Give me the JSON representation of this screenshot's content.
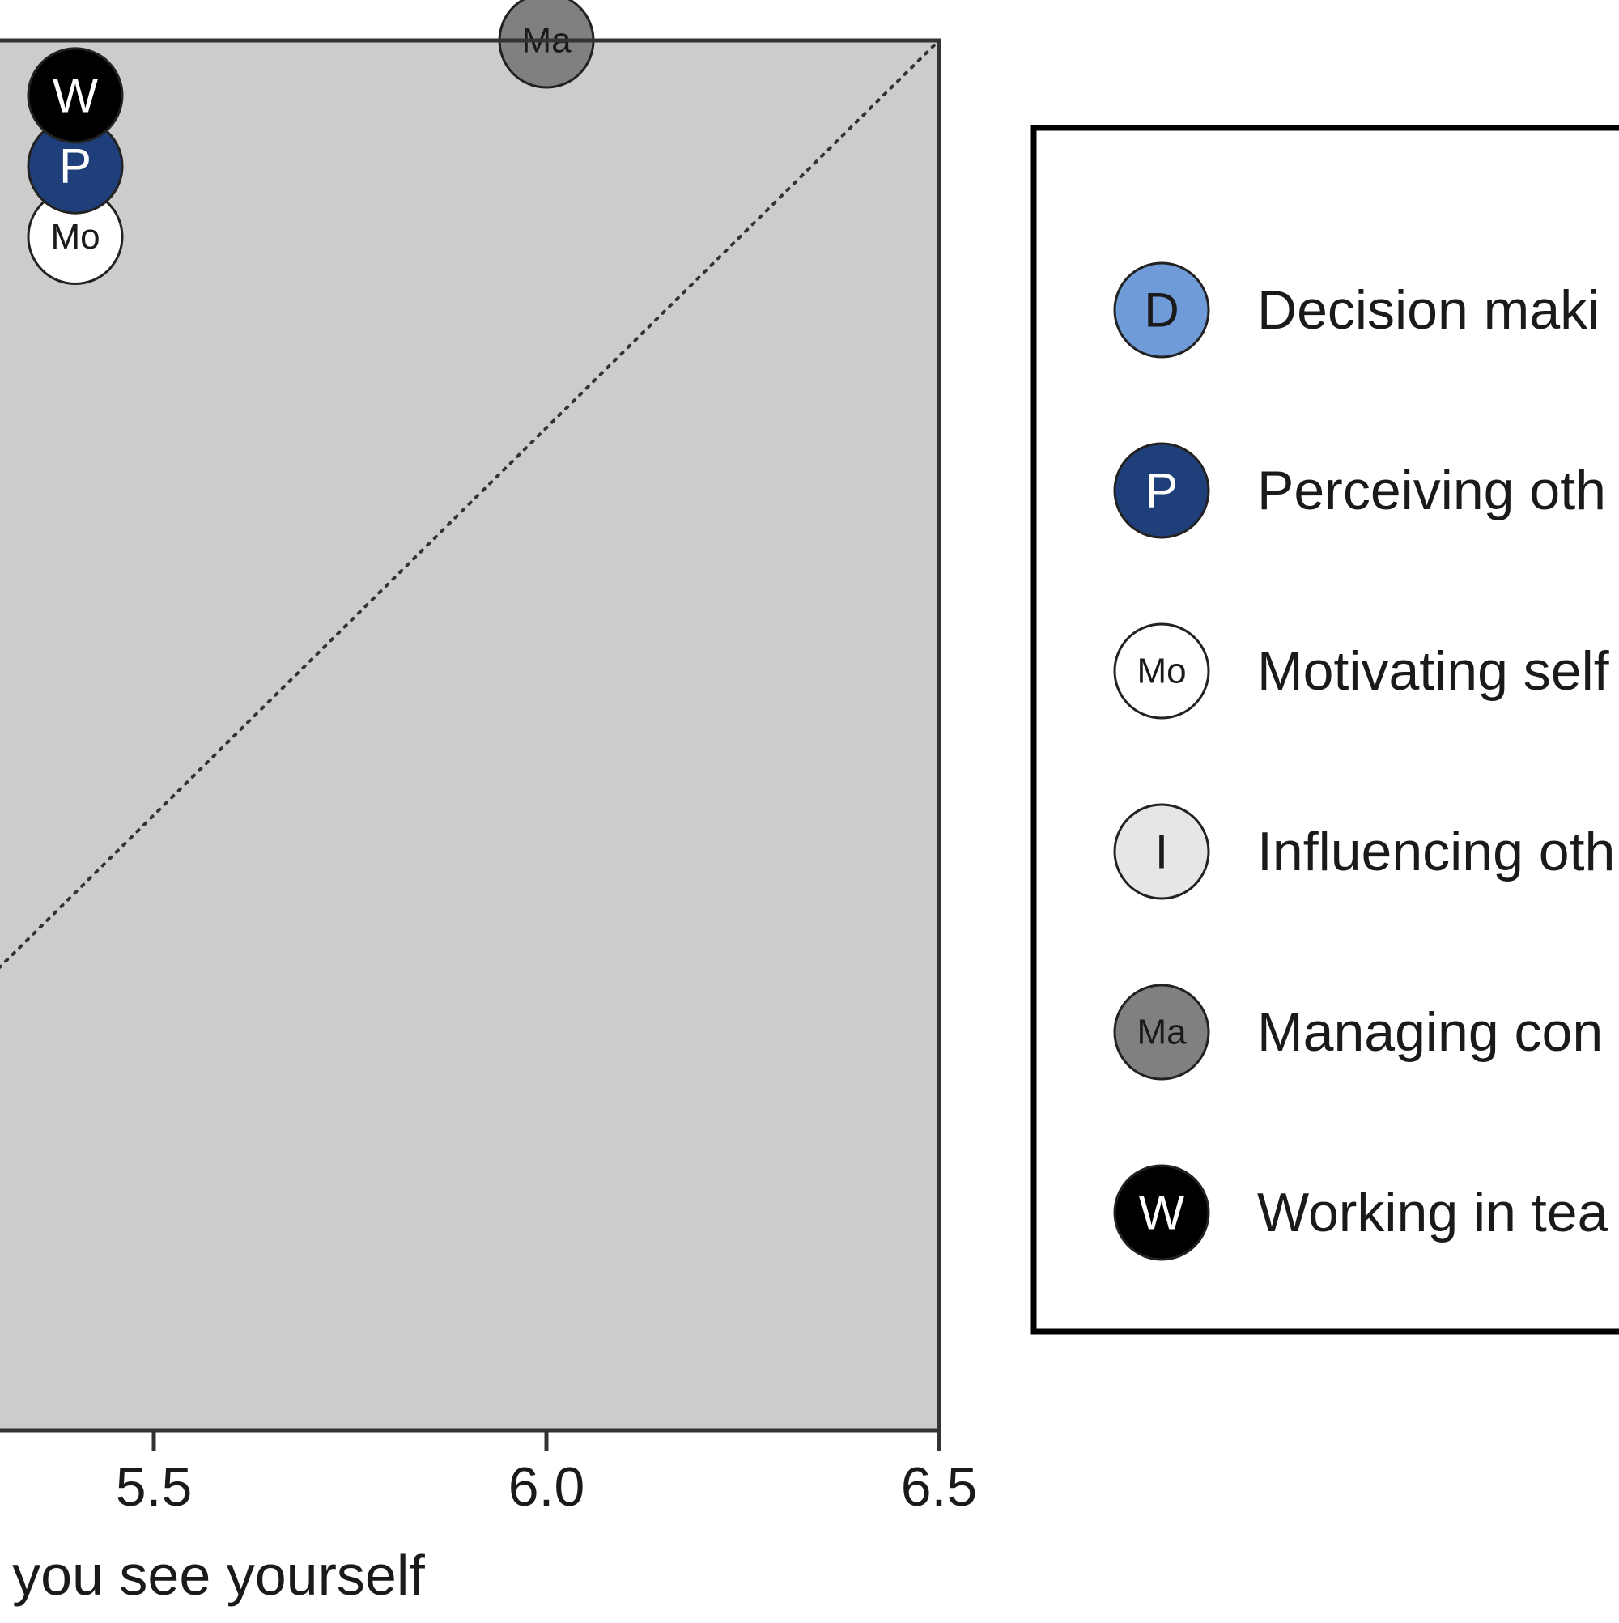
{
  "chart_data": {
    "type": "scatter",
    "xlabel": "you see yourself",
    "xlim": [
      5.31,
      6.5
    ],
    "x_ticks": [
      5.5,
      6.0,
      6.5
    ],
    "x_tick_labels": [
      "5.5",
      "6.0",
      "6.5"
    ],
    "reference_line": "diagonal y = x (dotted)",
    "background": "#cccccc",
    "grid": false,
    "legend_position": "right",
    "points": [
      {
        "key": "Ma",
        "x": 6.0,
        "y": 6.5
      },
      {
        "key": "W",
        "x": 5.4,
        "y": 6.43
      },
      {
        "key": "P",
        "x": 5.4,
        "y": 6.34
      },
      {
        "key": "Mo",
        "x": 5.4,
        "y": 6.25
      }
    ],
    "legend": [
      {
        "key": "D",
        "label": "Decision maki",
        "fill": "#6f9bd8",
        "text_color": "#1a1a1a"
      },
      {
        "key": "P",
        "label": "Perceiving oth",
        "fill": "#1f3f7a",
        "text_color": "#ffffff"
      },
      {
        "key": "Mo",
        "label": "Motivating self",
        "fill": "#ffffff",
        "text_color": "#1a1a1a"
      },
      {
        "key": "I",
        "label": "Influencing oth",
        "fill": "#e6e6e6",
        "text_color": "#1a1a1a"
      },
      {
        "key": "Ma",
        "label": "Managing con",
        "fill": "#808080",
        "text_color": "#1a1a1a"
      },
      {
        "key": "W",
        "label": "Working in tea",
        "fill": "#000000",
        "text_color": "#ffffff"
      }
    ]
  }
}
